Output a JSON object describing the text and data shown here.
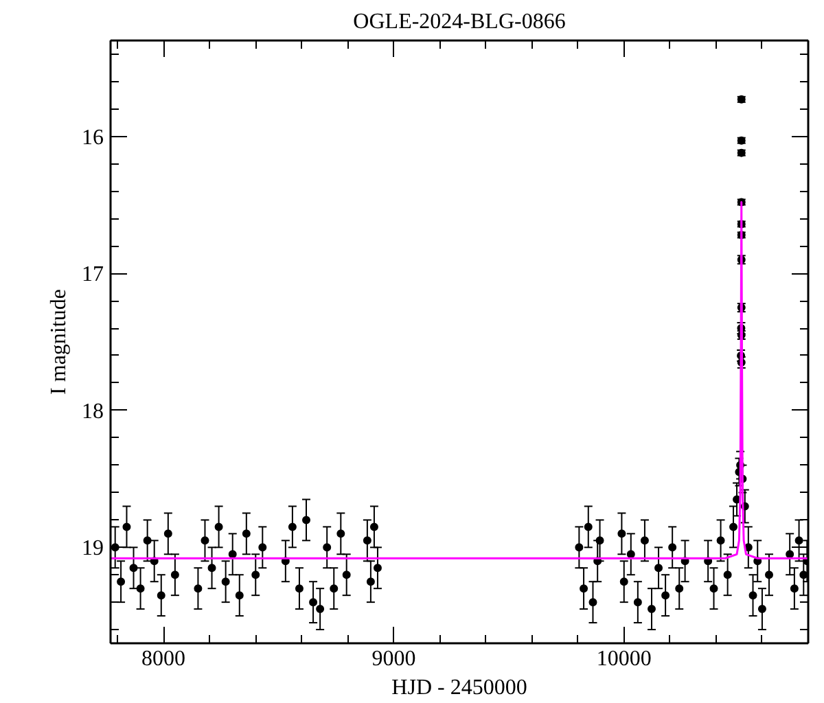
{
  "chart_data": {
    "type": "scatter",
    "title": "OGLE-2024-BLG-0866",
    "xlabel": "HJD - 2450000",
    "ylabel": "I magnitude",
    "xlim": [
      7770,
      10800
    ],
    "ylim": [
      19.7,
      15.3
    ],
    "xticks": [
      {
        "value": 7800,
        "label": null
      },
      8000,
      {
        "value": 8200,
        "label": null
      },
      {
        "value": 8400,
        "label": null
      },
      {
        "value": 8600,
        "label": null
      },
      {
        "value": 8800,
        "label": null
      },
      9000,
      {
        "value": 9200,
        "label": null
      },
      {
        "value": 9400,
        "label": null
      },
      {
        "value": 9600,
        "label": null
      },
      {
        "value": 9800,
        "label": null
      },
      10000,
      {
        "value": 10200,
        "label": null
      },
      {
        "value": 10400,
        "label": null
      },
      {
        "value": 10600,
        "label": null
      }
    ],
    "yticks": [
      {
        "value": 15.4,
        "label": null
      },
      {
        "value": 15.6,
        "label": null
      },
      {
        "value": 15.8,
        "label": null
      },
      16,
      {
        "value": 16.2,
        "label": null
      },
      {
        "value": 16.4,
        "label": null
      },
      {
        "value": 16.6,
        "label": null
      },
      {
        "value": 16.8,
        "label": null
      },
      17,
      {
        "value": 17.2,
        "label": null
      },
      {
        "value": 17.4,
        "label": null
      },
      {
        "value": 17.6,
        "label": null
      },
      {
        "value": 17.8,
        "label": null
      },
      18,
      {
        "value": 18.2,
        "label": null
      },
      {
        "value": 18.4,
        "label": null
      },
      {
        "value": 18.6,
        "label": null
      },
      {
        "value": 18.8,
        "label": null
      },
      19,
      {
        "value": 19.2,
        "label": null
      },
      {
        "value": 19.4,
        "label": null
      },
      {
        "value": 19.6,
        "label": null
      }
    ],
    "marker": "circle",
    "series": [
      {
        "color": "#000000",
        "x": [
          7790,
          7815,
          7840,
          7870,
          7900,
          7930,
          7960,
          7990,
          8020,
          8050,
          8150,
          8180,
          8210,
          8240,
          8270,
          8300,
          8330,
          8360,
          8400,
          8430,
          8530,
          8560,
          8590,
          8620,
          8650,
          8680,
          8710,
          8740,
          8770,
          8795,
          8885,
          8900,
          8915,
          8930,
          9805,
          9825,
          9845,
          9865,
          9885,
          9895,
          9990,
          10000,
          10030,
          10060,
          10090,
          10120,
          10150,
          10180,
          10210,
          10240,
          10265,
          10365,
          10390,
          10420,
          10450,
          10475,
          10490,
          10500,
          10505,
          10508,
          10509,
          10510,
          10510,
          10510,
          10510,
          10510,
          10510,
          10510,
          10510,
          10510,
          10510,
          10515,
          10525,
          10540,
          10560,
          10580,
          10600,
          10630,
          10720,
          10740,
          10760,
          10780,
          10795
        ],
        "values": [
          19.0,
          19.25,
          18.85,
          19.15,
          19.3,
          18.95,
          19.1,
          19.35,
          18.9,
          19.2,
          19.3,
          18.95,
          19.15,
          18.85,
          19.25,
          19.05,
          19.35,
          18.9,
          19.2,
          19.0,
          19.1,
          18.85,
          19.3,
          18.8,
          19.4,
          19.45,
          19.0,
          19.3,
          18.9,
          19.2,
          18.95,
          19.25,
          18.85,
          19.15,
          19.0,
          19.3,
          18.85,
          19.4,
          19.1,
          18.95,
          18.9,
          19.25,
          19.05,
          19.4,
          18.95,
          19.45,
          19.15,
          19.35,
          19.0,
          19.3,
          19.1,
          19.1,
          19.3,
          18.95,
          19.2,
          18.85,
          18.65,
          18.45,
          18.4,
          17.6,
          17.4,
          15.73,
          16.03,
          16.12,
          16.48,
          16.64,
          16.72,
          16.9,
          17.25,
          17.45,
          17.65,
          18.5,
          18.7,
          19.0,
          19.35,
          19.1,
          19.45,
          19.2,
          19.05,
          19.3,
          18.95,
          19.2,
          19.1
        ],
        "errors": [
          0.15,
          0.15,
          0.15,
          0.15,
          0.15,
          0.15,
          0.15,
          0.15,
          0.15,
          0.15,
          0.15,
          0.15,
          0.15,
          0.15,
          0.15,
          0.15,
          0.15,
          0.15,
          0.15,
          0.15,
          0.15,
          0.15,
          0.15,
          0.15,
          0.15,
          0.15,
          0.15,
          0.15,
          0.15,
          0.15,
          0.15,
          0.15,
          0.15,
          0.15,
          0.15,
          0.15,
          0.15,
          0.15,
          0.15,
          0.15,
          0.15,
          0.15,
          0.15,
          0.15,
          0.15,
          0.15,
          0.15,
          0.15,
          0.15,
          0.15,
          0.15,
          0.15,
          0.15,
          0.15,
          0.15,
          0.15,
          0.12,
          0.1,
          0.1,
          0.04,
          0.04,
          0.02,
          0.02,
          0.02,
          0.02,
          0.02,
          0.02,
          0.03,
          0.03,
          0.03,
          0.04,
          0.1,
          0.12,
          0.15,
          0.15,
          0.15,
          0.15,
          0.15,
          0.15,
          0.15,
          0.15,
          0.15,
          0.15
        ]
      },
      {
        "type": "line",
        "marker": "none",
        "color": "#ff00ff",
        "x": [
          7770,
          10440,
          10490,
          10500,
          10505,
          10508,
          10510,
          10512,
          10515,
          10520,
          10530,
          10580,
          10800
        ],
        "values": [
          19.08,
          19.08,
          19.05,
          18.95,
          18.6,
          17.5,
          16.48,
          17.5,
          18.6,
          18.95,
          19.05,
          19.08,
          19.08
        ]
      }
    ]
  }
}
